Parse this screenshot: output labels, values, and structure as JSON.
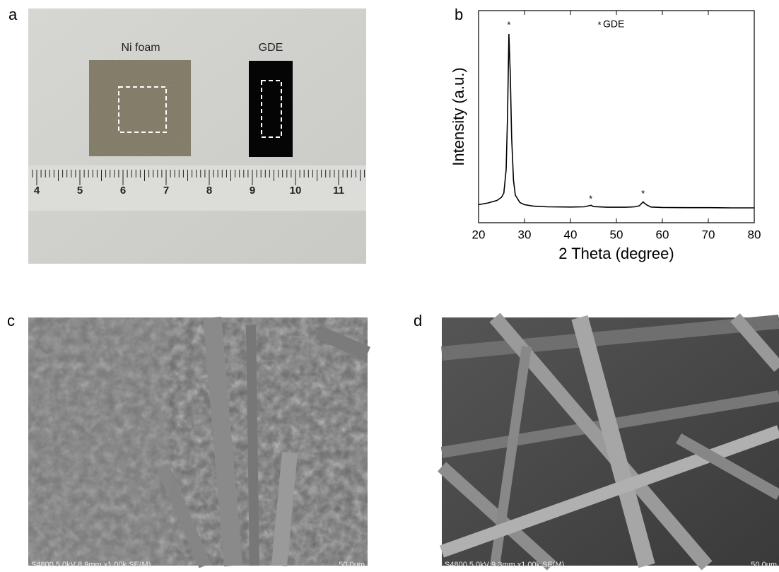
{
  "panels": [
    {
      "label": "a",
      "sample_labels": [
        "Ni foam",
        "GDE"
      ],
      "ruler_labels": [
        "4",
        "5",
        "6",
        "7",
        "8",
        "9",
        "10",
        "11"
      ]
    },
    {
      "label": "b"
    },
    {
      "label": "c",
      "caption": "S4800 5.0kV 8.9mm x1.00k SE(M)",
      "scale_bar": "50.0um"
    },
    {
      "label": "d",
      "caption": "S4800 5.0kV 9.3mm x1.00k SE(M)",
      "scale_bar": "50.0um"
    }
  ],
  "chart_data": {
    "type": "line",
    "xlabel": "2 Theta (degree)",
    "ylabel": "Intensity (a.u.)",
    "x": [
      20,
      22,
      24,
      25,
      25.5,
      26,
      26.3,
      26.6,
      26.9,
      27.2,
      27.6,
      28,
      29,
      30,
      32,
      35,
      40,
      43,
      44,
      44.5,
      45,
      48,
      52,
      54,
      55,
      55.8,
      56.5,
      57.5,
      60,
      65,
      70,
      75,
      80
    ],
    "series": [
      {
        "name": "GDE",
        "color": "#000000",
        "values": [
          8.5,
          9.3,
          10.5,
          12,
          14,
          25,
          50,
          89,
          70,
          40,
          20,
          13,
          9.5,
          8.5,
          7.8,
          7.5,
          7.4,
          7.5,
          8,
          8.2,
          7.6,
          7.3,
          7.3,
          7.5,
          8,
          9.8,
          8.5,
          7.4,
          7.2,
          7.1,
          7.1,
          7,
          7
        ]
      }
    ],
    "legend_marker": "*",
    "annotations": [
      {
        "x": 26.6,
        "y": 93,
        "label": "*"
      },
      {
        "x": 44.4,
        "y": 11,
        "label": "*"
      },
      {
        "x": 55.8,
        "y": 13.5,
        "label": "*"
      }
    ],
    "xlim": [
      20,
      80
    ],
    "ylim": [
      0,
      100
    ],
    "xticks": [
      20,
      30,
      40,
      50,
      60,
      70,
      80
    ]
  }
}
